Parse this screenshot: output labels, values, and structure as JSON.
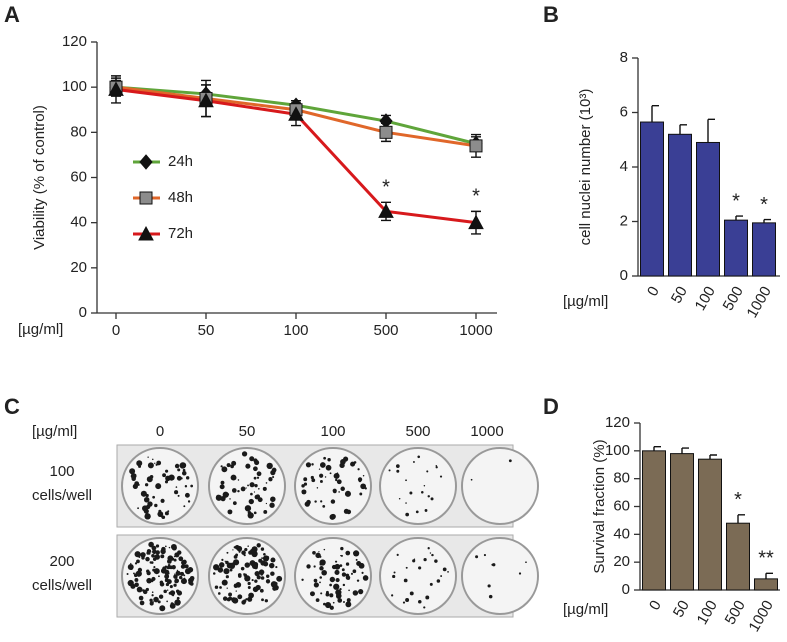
{
  "chart_data": [
    {
      "panel": "A",
      "type": "line",
      "ylabel": "Viability (% of control)",
      "xlabel": "[µg/ml]",
      "categories": [
        "0",
        "50",
        "100",
        "500",
        "1000"
      ],
      "ylim": [
        0,
        120
      ],
      "yticks": [
        0,
        20,
        40,
        60,
        80,
        100,
        120
      ],
      "series": [
        {
          "name": "24h",
          "color": "#5fa53a",
          "marker": "diamond",
          "marker_color": "#111111",
          "values": [
            100,
            97,
            92,
            85,
            75
          ],
          "errors": [
            3,
            4,
            2,
            2.5,
            3
          ]
        },
        {
          "name": "48h",
          "color": "#e0672a",
          "marker": "square",
          "marker_color": "#8c8c8c",
          "values": [
            100,
            95,
            90,
            80,
            74
          ],
          "errors": [
            4,
            8,
            4,
            4,
            5
          ]
        },
        {
          "name": "72h",
          "color": "#d7191c",
          "marker": "triangle",
          "marker_color": "#111111",
          "values": [
            99,
            94,
            88,
            45,
            40
          ],
          "errors": [
            6,
            7,
            5,
            4,
            5
          ]
        }
      ],
      "annotations": [
        {
          "text": "*",
          "x": "500"
        },
        {
          "text": "*",
          "x": "1000"
        }
      ]
    },
    {
      "panel": "B",
      "type": "bar",
      "ylabel": "cell nuclei number (10³)",
      "xlabel": "[µg/ml]",
      "categories": [
        "0",
        "50",
        "100",
        "500",
        "1000"
      ],
      "color": "#3a3f95",
      "values": [
        5.65,
        5.2,
        4.9,
        2.05,
        1.95
      ],
      "errors": [
        0.6,
        0.35,
        0.85,
        0.15,
        0.12
      ],
      "ylim": [
        0,
        8
      ],
      "yticks": [
        0,
        2,
        4,
        6,
        8
      ],
      "annotations": [
        {
          "text": "*",
          "x": "500"
        },
        {
          "text": "*",
          "x": "1000"
        }
      ]
    },
    {
      "panel": "D",
      "type": "bar",
      "ylabel": "Survival fraction (%)",
      "xlabel": "[µg/ml]",
      "categories": [
        "0",
        "50",
        "100",
        "500",
        "1000"
      ],
      "color": "#7b6b55",
      "values": [
        100,
        98,
        94,
        48,
        8
      ],
      "errors": [
        3,
        4,
        3,
        6,
        4
      ],
      "ylim": [
        0,
        120
      ],
      "yticks": [
        0,
        20,
        40,
        60,
        80,
        100,
        120
      ],
      "annotations": [
        {
          "text": "*",
          "x": "500"
        },
        {
          "text": "**",
          "x": "1000"
        }
      ]
    }
  ],
  "colony_panel": {
    "panel": "C",
    "xlabel": "[µg/ml]",
    "columns": [
      "0",
      "50",
      "100",
      "500",
      "1000"
    ],
    "rows": [
      {
        "label": [
          "100",
          "cells/well"
        ]
      },
      {
        "label": [
          "200",
          "cells/well"
        ]
      }
    ]
  }
}
